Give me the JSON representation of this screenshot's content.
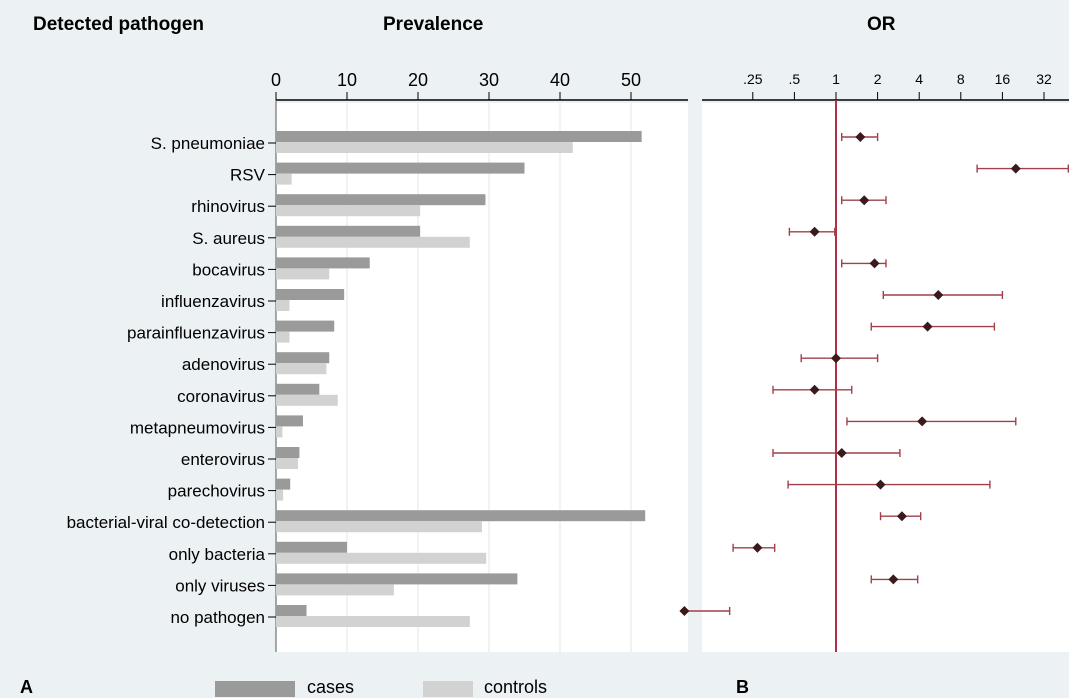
{
  "headers": {
    "detected_pathogen": "Detected pathogen",
    "prevalence": "Prevalence",
    "or": "OR"
  },
  "panel_labels": {
    "a": "A",
    "b": "B"
  },
  "legend": {
    "cases": "cases",
    "controls": "controls"
  },
  "colors": {
    "background": "#ecf2f4",
    "plot_area": "#ffffff",
    "cases": "#9a9a9a",
    "controls": "#d2d2d2",
    "reference_line": "#b0304a",
    "ci_line": "#a0404a",
    "marker": "#3a1a1a"
  },
  "chart_data": [
    {
      "type": "bar",
      "orientation": "horizontal",
      "title": "Prevalence",
      "categories": [
        "S. pneumoniae",
        "RSV",
        "rhinovirus",
        "S. aureus",
        "bocavirus",
        "influenzavirus",
        "parainfluenzavirus",
        "adenovirus",
        "coronavirus",
        "metapneumovirus",
        "enterovirus",
        "parechovirus",
        "bacterial-viral co-detection",
        "only bacteria",
        "only viruses",
        "no pathogen"
      ],
      "series": [
        {
          "name": "cases",
          "values": [
            51.5,
            35,
            29.5,
            20.3,
            13.2,
            9.6,
            8.2,
            7.5,
            6.1,
            3.8,
            3.3,
            2.0,
            52,
            10,
            34,
            4.3
          ]
        },
        {
          "name": "controls",
          "values": [
            41.8,
            2.2,
            20.3,
            27.3,
            7.5,
            1.9,
            1.9,
            7.1,
            8.7,
            0.9,
            3.1,
            1.0,
            29,
            29.6,
            16.6,
            27.3
          ]
        }
      ],
      "xlim": [
        0,
        55
      ],
      "ticks": [
        "0",
        "10",
        "20",
        "30",
        "40",
        "50"
      ],
      "grid": true,
      "legend_position": "bottom"
    },
    {
      "type": "scatter",
      "subtype": "forest",
      "title": "OR",
      "categories": [
        "S. pneumoniae",
        "RSV",
        "rhinovirus",
        "S. aureus",
        "bocavirus",
        "influenzavirus",
        "parainfluenzavirus",
        "adenovirus",
        "coronavirus",
        "metapneumovirus",
        "enterovirus",
        "parechovirus",
        "bacterial-viral co-detection",
        "only bacteria",
        "only viruses",
        "no pathogen"
      ],
      "or": [
        1.5,
        20,
        1.6,
        0.7,
        1.9,
        5.5,
        4.6,
        1.0,
        0.7,
        4.2,
        1.1,
        2.1,
        3.0,
        0.27,
        2.6,
        0.08
      ],
      "ci_low": [
        1.1,
        10.5,
        1.1,
        0.46,
        1.1,
        2.2,
        1.8,
        0.56,
        0.35,
        1.2,
        0.35,
        0.45,
        2.1,
        0.18,
        1.8,
        0.08
      ],
      "ci_high": [
        2.0,
        48,
        2.3,
        0.98,
        2.3,
        16,
        14,
        2.0,
        1.3,
        20,
        2.9,
        13,
        4.1,
        0.36,
        3.9,
        0.17
      ],
      "x_scale": "log2",
      "reference_value": 1,
      "ticks": [
        ".25",
        ".5",
        "1",
        "2",
        "4",
        "8",
        "16",
        "32"
      ]
    }
  ]
}
